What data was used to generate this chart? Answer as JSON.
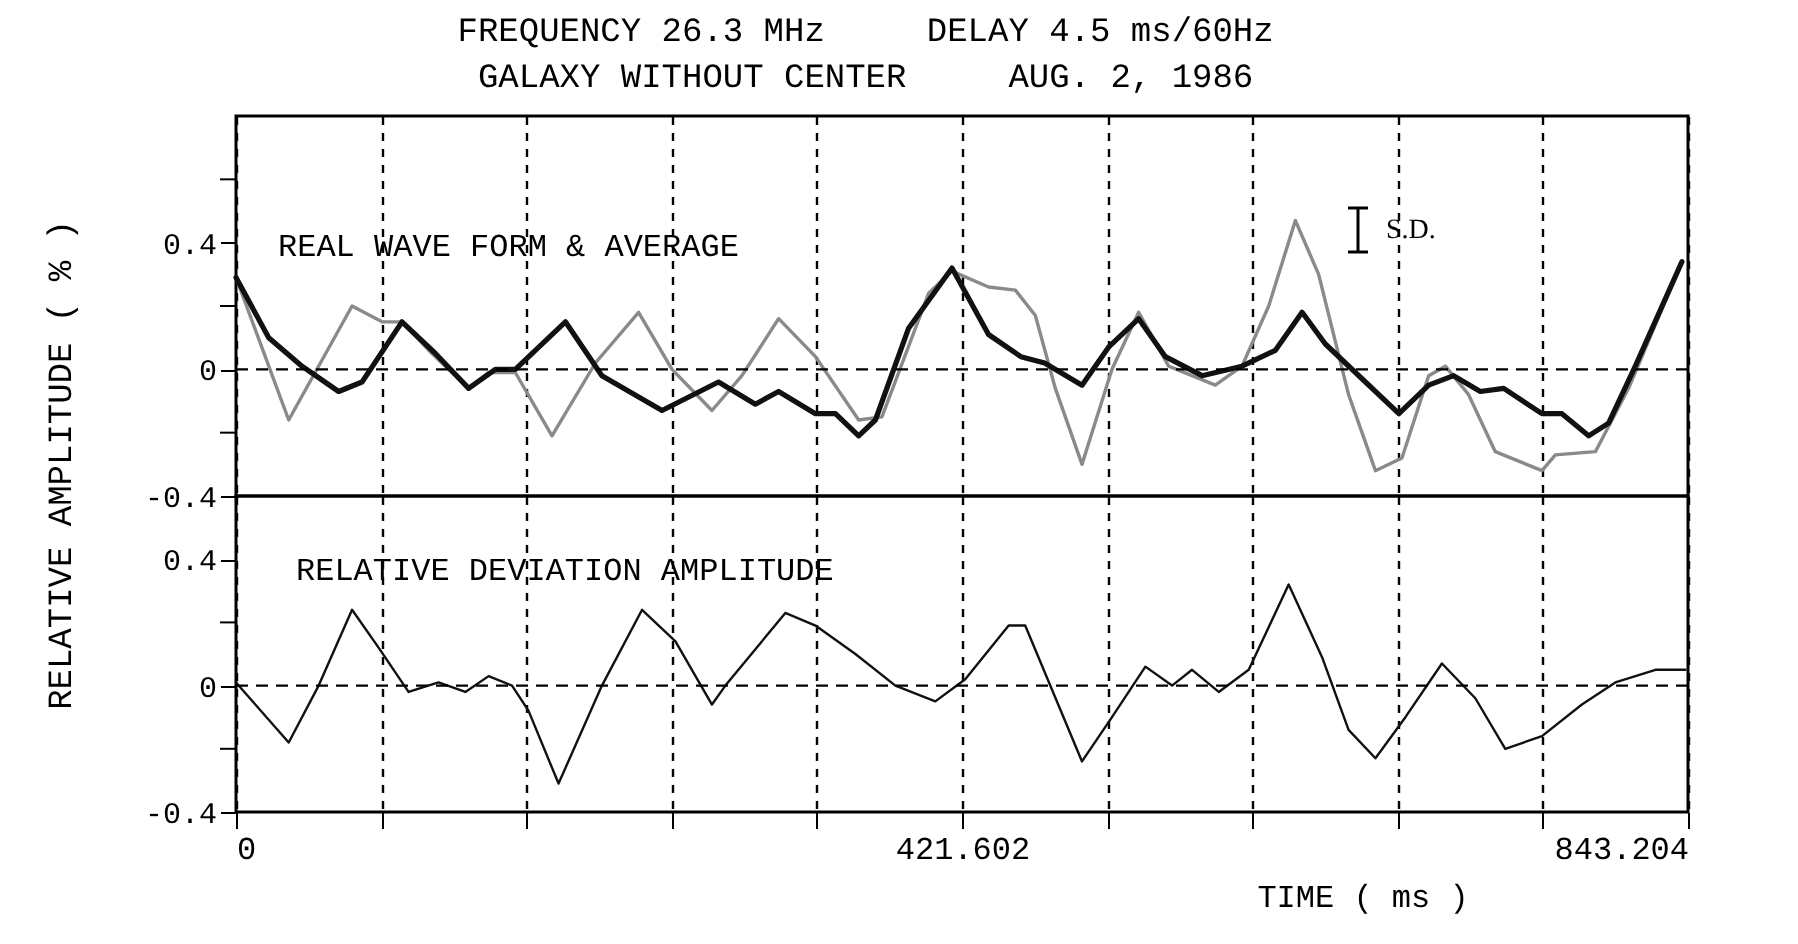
{
  "chart_data": [
    {
      "type": "line",
      "title": "FREQUENCY 26.3 MHz     DELAY 4.5 ms/60Hz",
      "subtitle": "GALAXY WITHOUT CENTER     AUG. 2, 1986",
      "ylabel": "RELATIVE AMPLITUDE ( % )",
      "annotations": [
        "REAL WAVE FORM & AVERAGE",
        "S.D."
      ],
      "series": [
        {
          "color": "#8a8a8a",
          "x": [
            0,
            30.6,
            67.4,
            84.8,
            96.4,
            113.8,
            135,
            146.7,
            162.2,
            183.5,
            208.7,
            233.8,
            253.2,
            276.4,
            293.8,
            315.1,
            336.5,
            361.6,
            375.1,
            402.2,
            415.8,
            437,
            452.6,
            464.2,
            475.8,
            491.3,
            508.7,
            524.2,
            541.6,
            568.7,
            584.2,
            599.7,
            615.2,
            628.7,
            646.1,
            661.7,
            677.1,
            692.6,
            702.3,
            715.8,
            731.3,
            758.4,
            766.2,
            789.4,
            808.7,
            839.7
          ],
          "values": [
            0.29,
            -0.16,
            0.2,
            0.15,
            0.15,
            0.05,
            -0.06,
            -0.01,
            -0.01,
            -0.21,
            0.02,
            0.18,
            0,
            -0.13,
            -0.02,
            0.16,
            0.04,
            -0.16,
            -0.15,
            0.24,
            0.31,
            0.26,
            0.25,
            0.17,
            -0.06,
            -0.3,
            0,
            0.18,
            0.01,
            -0.05,
            0.01,
            0.2,
            0.47,
            0.3,
            -0.08,
            -0.32,
            -0.28,
            -0.02,
            0.01,
            -0.08,
            -0.26,
            -0.32,
            -0.27,
            -0.26,
            -0.06,
            0.34
          ]
        },
        {
          "color": "#111111",
          "x": [
            0,
            19,
            38.3,
            59.6,
            73.2,
            96.4,
            115.8,
            135.1,
            150.6,
            162.2,
            191.3,
            212.5,
            247.4,
            280.2,
            301.6,
            315.1,
            336.5,
            348.1,
            361.6,
            371.3,
            390.6,
            415.8,
            437,
            455.8,
            469.6,
            491.3,
            506.7,
            524.2,
            539.7,
            561,
            584.2,
            603.6,
            619.1,
            632.6,
            655.9,
            675.3,
            692.6,
            707.1,
            722.6,
            736.2,
            758.4,
            770,
            785.5,
            797.1,
            812.6,
            839.7
          ],
          "values": [
            0.29,
            0.1,
            0.01,
            -0.07,
            -0.04,
            0.15,
            0.05,
            -0.06,
            0,
            0,
            0.15,
            -0.02,
            -0.13,
            -0.04,
            -0.11,
            -0.07,
            -0.14,
            -0.14,
            -0.21,
            -0.16,
            0.13,
            0.32,
            0.11,
            0.04,
            0.02,
            -0.05,
            0.07,
            0.16,
            0.04,
            -0.02,
            0.01,
            0.06,
            0.18,
            0.08,
            -0.04,
            -0.14,
            -0.05,
            -0.02,
            -0.07,
            -0.06,
            -0.14,
            -0.14,
            -0.21,
            -0.17,
            0.01,
            0.34
          ]
        }
      ],
      "xlim": [
        0,
        843.204
      ],
      "xticks": [
        0,
        {
          "value": 84.3204,
          "label": null
        },
        {
          "value": 168.6408,
          "label": null
        },
        {
          "value": 252.9612,
          "label": null
        },
        {
          "value": 337.2816,
          "label": null
        },
        421.602,
        {
          "value": 505.9224,
          "label": null
        },
        {
          "value": 590.2428,
          "label": null
        },
        {
          "value": 674.5632,
          "label": null
        },
        {
          "value": 758.8836,
          "label": null
        },
        843.204
      ],
      "ylim": [
        -0.4,
        0.8
      ],
      "yticks": [
        -0.4,
        {
          "value": -0.2,
          "label": null
        },
        0,
        {
          "value": 0.2,
          "label": null
        },
        0.4,
        {
          "value": 0.6,
          "label": null
        }
      ],
      "grid": "x",
      "tick_labels": "y",
      "ref_lines": [
        {
          "axis": "y",
          "value": 0,
          "line_style": "dashed"
        }
      ]
    },
    {
      "type": "line",
      "xlabel": "TIME ( ms )",
      "annotations": [
        "RELATIVE DEVIATION AMPLITUDE"
      ],
      "series": [
        {
          "color": "#111111",
          "x": [
            0,
            30.6,
            48,
            67.4,
            82.8,
            100.2,
            117.6,
            133.2,
            146.7,
            160.3,
            169.9,
            187.3,
            212.5,
            235.8,
            255.2,
            276.4,
            284.2,
            319,
            336.5,
            359.7,
            382.9,
            406.1,
            423.5,
            448.7,
            458.3,
            491.3,
            508.7,
            528.1,
            543.6,
            555.2,
            570.7,
            588.1,
            611.3,
            630.7,
            646.1,
            661.7,
            679.1,
            700.3,
            719.7,
            737.1,
            758.4,
            781.6,
            801,
            824.3,
            841.7
          ],
          "values": [
            0.01,
            -0.18,
            0,
            0.24,
            0.12,
            -0.02,
            0.01,
            -0.02,
            0.03,
            0,
            -0.08,
            -0.31,
            0,
            0.24,
            0.14,
            -0.06,
            0,
            0.23,
            0.19,
            0.1,
            0,
            -0.05,
            0.02,
            0.19,
            0.19,
            -0.24,
            -0.1,
            0.06,
            0,
            0.05,
            -0.02,
            0.05,
            0.32,
            0.09,
            -0.14,
            -0.23,
            -0.1,
            0.07,
            -0.04,
            -0.2,
            -0.16,
            -0.06,
            0.01,
            0.05,
            0.05
          ]
        }
      ],
      "xlim": [
        0,
        843.204
      ],
      "xticks": [
        0,
        {
          "value": 84.3204,
          "label": null
        },
        {
          "value": 168.6408,
          "label": null
        },
        {
          "value": 252.9612,
          "label": null
        },
        {
          "value": 337.2816,
          "label": null
        },
        421.602,
        {
          "value": 505.9224,
          "label": null
        },
        {
          "value": 590.2428,
          "label": null
        },
        {
          "value": 674.5632,
          "label": null
        },
        {
          "value": 758.8836,
          "label": null
        },
        843.204
      ],
      "ylim": [
        -0.4,
        0.6
      ],
      "yticks": [
        -0.4,
        {
          "value": -0.2,
          "label": null
        },
        0,
        {
          "value": 0.2,
          "label": null
        },
        0.4
      ],
      "grid": "x",
      "ref_lines": [
        {
          "axis": "y",
          "value": 0,
          "line_style": "dashed"
        }
      ]
    }
  ]
}
